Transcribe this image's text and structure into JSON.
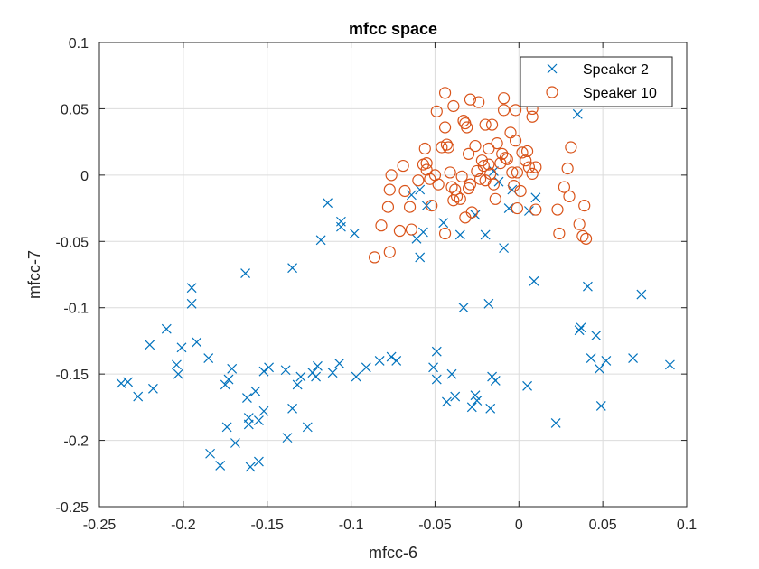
{
  "chart_data": {
    "type": "scatter",
    "title": "mfcc space",
    "xlabel": "mfcc-6",
    "ylabel": "mfcc-7",
    "xlim": [
      -0.25,
      0.1
    ],
    "ylim": [
      -0.25,
      0.1
    ],
    "xticks": [
      -0.25,
      -0.2,
      -0.15,
      -0.1,
      -0.05,
      0,
      0.05,
      0.1
    ],
    "xtick_labels": [
      "-0.25",
      "-0.2",
      "-0.15",
      "-0.1",
      "-0.05",
      "0",
      "0.05",
      "0.1"
    ],
    "yticks": [
      -0.25,
      -0.2,
      -0.15,
      -0.1,
      -0.05,
      0,
      0.05,
      0.1
    ],
    "ytick_labels": [
      "-0.25",
      "-0.2",
      "-0.15",
      "-0.1",
      "-0.05",
      "0",
      "0.05",
      "0.1"
    ],
    "grid": true,
    "legend_position": "top-right",
    "series": [
      {
        "name": "Speaker 2",
        "marker": "x",
        "color": "#0072BD",
        "points": [
          [
            -0.237,
            -0.157
          ],
          [
            -0.233,
            -0.156
          ],
          [
            -0.227,
            -0.167
          ],
          [
            -0.22,
            -0.128
          ],
          [
            -0.218,
            -0.161
          ],
          [
            -0.21,
            -0.116
          ],
          [
            -0.204,
            -0.143
          ],
          [
            -0.203,
            -0.15
          ],
          [
            -0.201,
            -0.13
          ],
          [
            -0.195,
            -0.085
          ],
          [
            -0.195,
            -0.097
          ],
          [
            -0.192,
            -0.126
          ],
          [
            -0.185,
            -0.138
          ],
          [
            -0.184,
            -0.21
          ],
          [
            -0.178,
            -0.219
          ],
          [
            -0.175,
            -0.158
          ],
          [
            -0.174,
            -0.19
          ],
          [
            -0.173,
            -0.154
          ],
          [
            -0.171,
            -0.146
          ],
          [
            -0.169,
            -0.202
          ],
          [
            -0.163,
            -0.074
          ],
          [
            -0.162,
            -0.168
          ],
          [
            -0.161,
            -0.188
          ],
          [
            -0.161,
            -0.183
          ],
          [
            -0.16,
            -0.22
          ],
          [
            -0.157,
            -0.163
          ],
          [
            -0.155,
            -0.216
          ],
          [
            -0.155,
            -0.185
          ],
          [
            -0.152,
            -0.178
          ],
          [
            -0.152,
            -0.148
          ],
          [
            -0.149,
            -0.145
          ],
          [
            -0.139,
            -0.147
          ],
          [
            -0.138,
            -0.198
          ],
          [
            -0.135,
            -0.07
          ],
          [
            -0.135,
            -0.176
          ],
          [
            -0.132,
            -0.158
          ],
          [
            -0.13,
            -0.152
          ],
          [
            -0.126,
            -0.19
          ],
          [
            -0.123,
            -0.149
          ],
          [
            -0.121,
            -0.152
          ],
          [
            -0.12,
            -0.144
          ],
          [
            -0.118,
            -0.049
          ],
          [
            -0.114,
            -0.021
          ],
          [
            -0.111,
            -0.149
          ],
          [
            -0.107,
            -0.142
          ],
          [
            -0.106,
            -0.035
          ],
          [
            -0.106,
            -0.039
          ],
          [
            -0.098,
            -0.044
          ],
          [
            -0.097,
            -0.152
          ],
          [
            -0.091,
            -0.145
          ],
          [
            -0.083,
            -0.14
          ],
          [
            -0.076,
            -0.137
          ],
          [
            -0.073,
            -0.14
          ],
          [
            -0.064,
            -0.015
          ],
          [
            -0.061,
            -0.048
          ],
          [
            -0.059,
            -0.011
          ],
          [
            -0.059,
            -0.062
          ],
          [
            -0.057,
            -0.043
          ],
          [
            -0.055,
            -0.023
          ],
          [
            -0.051,
            -0.145
          ],
          [
            -0.049,
            -0.133
          ],
          [
            -0.049,
            -0.154
          ],
          [
            -0.045,
            -0.036
          ],
          [
            -0.043,
            -0.171
          ],
          [
            -0.04,
            -0.15
          ],
          [
            -0.038,
            -0.167
          ],
          [
            -0.035,
            -0.045
          ],
          [
            -0.033,
            -0.1
          ],
          [
            -0.028,
            -0.175
          ],
          [
            -0.026,
            -0.166
          ],
          [
            -0.025,
            -0.17
          ],
          [
            -0.026,
            -0.03
          ],
          [
            -0.02,
            -0.045
          ],
          [
            -0.018,
            -0.097
          ],
          [
            -0.017,
            -0.176
          ],
          [
            -0.016,
            -0.152
          ],
          [
            -0.014,
            -0.155
          ],
          [
            -0.015,
            0.003
          ],
          [
            -0.012,
            -0.005
          ],
          [
            -0.009,
            -0.055
          ],
          [
            -0.006,
            -0.025
          ],
          [
            -0.004,
            -0.011
          ],
          [
            0.005,
            -0.159
          ],
          [
            0.006,
            -0.027
          ],
          [
            0.01,
            -0.017
          ],
          [
            0.009,
            -0.08
          ],
          [
            0.022,
            -0.187
          ],
          [
            0.036,
            -0.117
          ],
          [
            0.037,
            -0.115
          ],
          [
            0.035,
            0.046
          ],
          [
            0.041,
            -0.084
          ],
          [
            0.043,
            -0.138
          ],
          [
            0.046,
            -0.121
          ],
          [
            0.048,
            -0.146
          ],
          [
            0.049,
            -0.174
          ],
          [
            0.052,
            -0.14
          ],
          [
            0.068,
            -0.138
          ],
          [
            0.073,
            -0.09
          ],
          [
            0.09,
            -0.143
          ]
        ]
      },
      {
        "name": "Speaker 10",
        "marker": "o",
        "color": "#D95319",
        "points": [
          [
            -0.086,
            -0.062
          ],
          [
            -0.082,
            -0.038
          ],
          [
            -0.078,
            -0.024
          ],
          [
            -0.077,
            -0.058
          ],
          [
            -0.077,
            -0.011
          ],
          [
            -0.076,
            0.0
          ],
          [
            -0.071,
            -0.042
          ],
          [
            -0.069,
            0.007
          ],
          [
            -0.068,
            -0.012
          ],
          [
            -0.065,
            -0.024
          ],
          [
            -0.064,
            -0.041
          ],
          [
            -0.06,
            -0.004
          ],
          [
            -0.057,
            0.008
          ],
          [
            -0.056,
            0.02
          ],
          [
            -0.055,
            0.009
          ],
          [
            -0.055,
            0.004
          ],
          [
            -0.053,
            -0.003
          ],
          [
            -0.052,
            -0.023
          ],
          [
            -0.05,
            0.0
          ],
          [
            -0.049,
            0.048
          ],
          [
            -0.048,
            -0.007
          ],
          [
            -0.046,
            0.021
          ],
          [
            -0.044,
            0.062
          ],
          [
            -0.044,
            0.036
          ],
          [
            -0.044,
            -0.044
          ],
          [
            -0.043,
            0.023
          ],
          [
            -0.042,
            0.021
          ],
          [
            -0.041,
            0.002
          ],
          [
            -0.04,
            -0.009
          ],
          [
            -0.039,
            0.052
          ],
          [
            -0.039,
            -0.019
          ],
          [
            -0.038,
            -0.011
          ],
          [
            -0.037,
            -0.016
          ],
          [
            -0.035,
            -0.018
          ],
          [
            -0.034,
            -0.001
          ],
          [
            -0.033,
            0.041
          ],
          [
            -0.032,
            0.039
          ],
          [
            -0.032,
            -0.032
          ],
          [
            -0.031,
            0.036
          ],
          [
            -0.03,
            0.016
          ],
          [
            -0.03,
            -0.01
          ],
          [
            -0.029,
            0.057
          ],
          [
            -0.029,
            -0.007
          ],
          [
            -0.028,
            -0.028
          ],
          [
            -0.026,
            0.022
          ],
          [
            -0.025,
            0.003
          ],
          [
            -0.024,
            0.055
          ],
          [
            -0.023,
            -0.003
          ],
          [
            -0.022,
            0.011
          ],
          [
            -0.021,
            0.007
          ],
          [
            -0.02,
            -0.004
          ],
          [
            -0.02,
            0.038
          ],
          [
            -0.018,
            0.02
          ],
          [
            -0.018,
            0.008
          ],
          [
            -0.017,
            0.001
          ],
          [
            -0.016,
            0.038
          ],
          [
            -0.015,
            -0.007
          ],
          [
            -0.014,
            -0.018
          ],
          [
            -0.013,
            0.024
          ],
          [
            -0.011,
            0.009
          ],
          [
            -0.01,
            0.016
          ],
          [
            -0.009,
            0.058
          ],
          [
            -0.009,
            0.049
          ],
          [
            -0.008,
            0.013
          ],
          [
            -0.007,
            0.012
          ],
          [
            -0.005,
            0.032
          ],
          [
            -0.004,
            0.002
          ],
          [
            -0.003,
            -0.008
          ],
          [
            -0.002,
            0.026
          ],
          [
            -0.002,
            0.049
          ],
          [
            -0.001,
            -0.025
          ],
          [
            -0.001,
            0.002
          ],
          [
            0.001,
            -0.012
          ],
          [
            0.002,
            0.017
          ],
          [
            0.004,
            0.011
          ],
          [
            0.005,
            0.018
          ],
          [
            0.006,
            0.006
          ],
          [
            0.008,
            0.044
          ],
          [
            0.008,
            0.05
          ],
          [
            0.008,
            0.001
          ],
          [
            0.01,
            0.006
          ],
          [
            0.01,
            -0.026
          ],
          [
            0.023,
            -0.026
          ],
          [
            0.024,
            -0.044
          ],
          [
            0.027,
            -0.009
          ],
          [
            0.029,
            0.005
          ],
          [
            0.03,
            -0.016
          ],
          [
            0.031,
            0.021
          ],
          [
            0.036,
            -0.037
          ],
          [
            0.038,
            -0.046
          ],
          [
            0.039,
            -0.023
          ],
          [
            0.04,
            -0.048
          ]
        ]
      }
    ]
  }
}
